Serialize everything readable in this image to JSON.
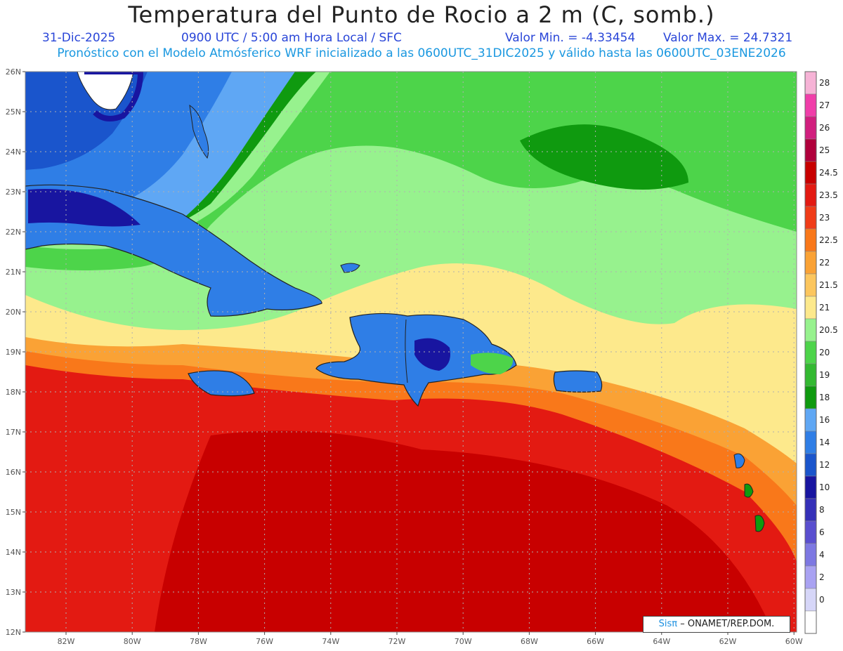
{
  "title": "Temperatura del Punto de Rocio a 2 m (C, somb.)",
  "header": {
    "date": "31-Dic-2025",
    "time": "0900 UTC / 5:00 am Hora Local / SFC",
    "min": "Valor Min. = -4.33454",
    "max": "Valor Max. = 24.7321",
    "model_note": "Pronóstico con el Modelo Atmósferico WRF inicializado a las 0600UTC_31DIC2025 y válido hasta las  0600UTC_03ENE2026"
  },
  "lat_labels": [
    "26N",
    "25N",
    "24N",
    "23N",
    "22N",
    "21N",
    "20N",
    "19N",
    "18N",
    "17N",
    "16N",
    "15N",
    "14N",
    "13N",
    "12N"
  ],
  "lon_labels": [
    "82W",
    "80W",
    "78W",
    "76W",
    "74W",
    "72W",
    "70W",
    "68W",
    "66W",
    "64W",
    "62W",
    "60W"
  ],
  "legend": [
    {
      "label": "28",
      "color": "#f6b3d6"
    },
    {
      "label": "27",
      "color": "#f03ea9"
    },
    {
      "label": "26",
      "color": "#d11f7e"
    },
    {
      "label": "25",
      "color": "#b0003c"
    },
    {
      "label": "24.5",
      "color": "#c80000"
    },
    {
      "label": "23.5",
      "color": "#e31a12"
    },
    {
      "label": "23",
      "color": "#f03c18"
    },
    {
      "label": "22.5",
      "color": "#f9781a"
    },
    {
      "label": "22",
      "color": "#faa235"
    },
    {
      "label": "21.5",
      "color": "#fcc65e"
    },
    {
      "label": "21",
      "color": "#fde98c"
    },
    {
      "label": "20.5",
      "color": "#97f28e"
    },
    {
      "label": "20",
      "color": "#4dd44a"
    },
    {
      "label": "19",
      "color": "#33b931"
    },
    {
      "label": "18",
      "color": "#0f9a0f"
    },
    {
      "label": "16",
      "color": "#5fa7f4"
    },
    {
      "label": "14",
      "color": "#2f7ee6"
    },
    {
      "label": "12",
      "color": "#1a55cc"
    },
    {
      "label": "10",
      "color": "#1815a0"
    },
    {
      "label": "8",
      "color": "#3530b8"
    },
    {
      "label": "6",
      "color": "#5a4fcf"
    },
    {
      "label": "4",
      "color": "#7d78e2"
    },
    {
      "label": "2",
      "color": "#a9a2f2"
    },
    {
      "label": "0",
      "color": "#d6d6f8"
    },
    {
      "label": "",
      "color": "#ffffff"
    }
  ],
  "credit": {
    "sis": "Sisπ",
    "rest": "– ONAMET/REP.DOM."
  }
}
